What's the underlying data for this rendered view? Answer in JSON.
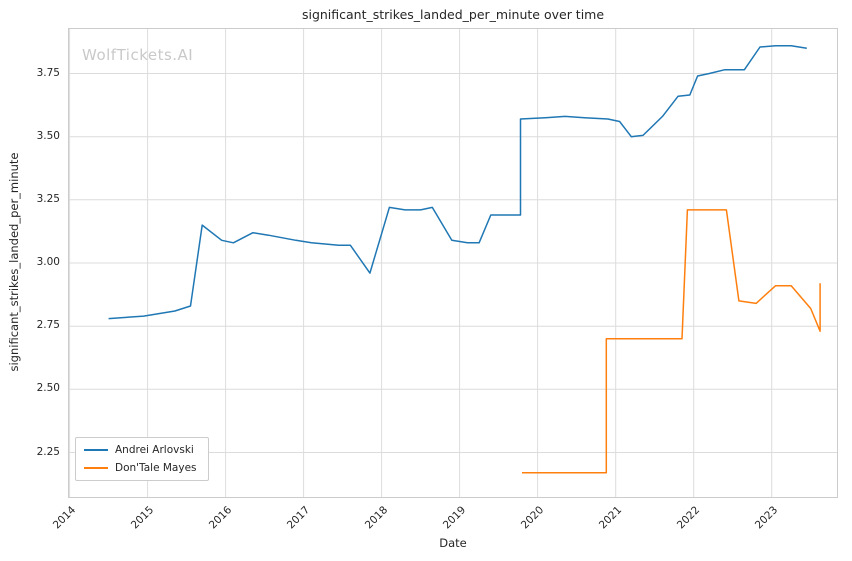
{
  "chart_data": {
    "type": "line",
    "title": "significant_strikes_landed_per_minute over time",
    "xlabel": "Date",
    "ylabel": "significant_strikes_landed_per_minute",
    "watermark": "WolfTickets.AI",
    "grid": true,
    "legend_position": "lower left",
    "xlim": [
      2013.98,
      2023.85
    ],
    "ylim": [
      2.07,
      3.93
    ],
    "xticks": {
      "values": [
        2014,
        2015,
        2016,
        2017,
        2018,
        2019,
        2020,
        2021,
        2022,
        2023
      ],
      "labels": [
        "2014",
        "2015",
        "2016",
        "2017",
        "2018",
        "2019",
        "2020",
        "2021",
        "2022",
        "2023"
      ]
    },
    "yticks": {
      "values": [
        2.25,
        2.5,
        2.75,
        3.0,
        3.25,
        3.5,
        3.75
      ],
      "labels": [
        "2.25",
        "2.50",
        "2.75",
        "3.00",
        "3.25",
        "3.50",
        "3.75"
      ]
    },
    "style": {
      "grid_color": "#dcdcdc",
      "spine_color": "#cccccc",
      "text_color": "#262626",
      "watermark_color": "#c9c9c9",
      "background": "#ffffff"
    },
    "series": [
      {
        "name": "Andrei Arlovski",
        "color": "#1f77b4",
        "x": [
          2014.5,
          2014.95,
          2015.35,
          2015.55,
          2015.7,
          2015.95,
          2016.1,
          2016.35,
          2016.55,
          2016.9,
          2017.1,
          2017.45,
          2017.6,
          2017.85,
          2018.1,
          2018.3,
          2018.5,
          2018.65,
          2018.9,
          2019.1,
          2019.25,
          2019.4,
          2019.6,
          2019.78,
          2019.78,
          2020.1,
          2020.35,
          2020.6,
          2020.9,
          2021.05,
          2021.2,
          2021.35,
          2021.6,
          2021.8,
          2021.95,
          2022.05,
          2022.2,
          2022.4,
          2022.65,
          2022.85,
          2023.05,
          2023.25,
          2023.45
        ],
        "y": [
          2.78,
          2.79,
          2.81,
          2.83,
          3.15,
          3.09,
          3.08,
          3.12,
          3.11,
          3.09,
          3.08,
          3.07,
          3.07,
          2.96,
          3.22,
          3.21,
          3.21,
          3.22,
          3.09,
          3.08,
          3.08,
          3.19,
          3.19,
          3.19,
          3.57,
          3.575,
          3.58,
          3.575,
          3.57,
          3.56,
          3.5,
          3.505,
          3.58,
          3.66,
          3.665,
          3.74,
          3.75,
          3.765,
          3.765,
          3.855,
          3.86,
          3.86,
          3.85
        ]
      },
      {
        "name": "Don'Tale Mayes",
        "color": "#ff7f0e",
        "x": [
          2019.8,
          2020.3,
          2020.88,
          2020.88,
          2021.3,
          2021.85,
          2021.92,
          2022.1,
          2022.42,
          2022.58,
          2022.8,
          2023.05,
          2023.25,
          2023.5,
          2023.62,
          2023.62
        ],
        "y": [
          2.17,
          2.17,
          2.17,
          2.7,
          2.7,
          2.7,
          3.21,
          3.21,
          3.21,
          2.85,
          2.84,
          2.91,
          2.91,
          2.82,
          2.73,
          2.92
        ]
      }
    ]
  }
}
